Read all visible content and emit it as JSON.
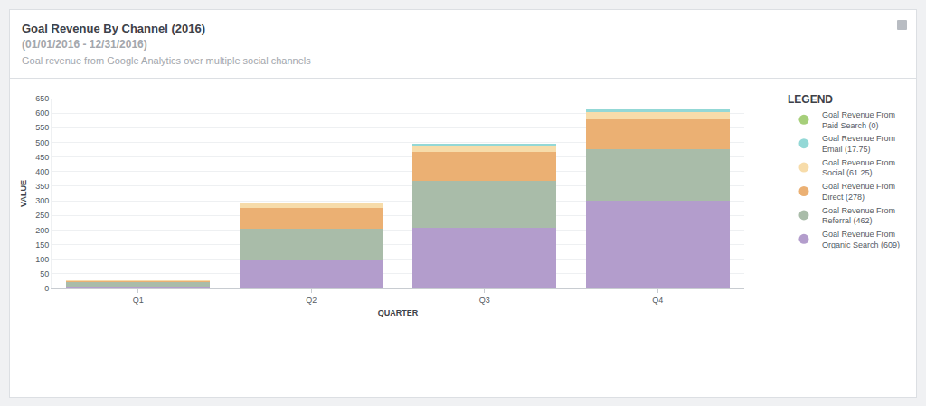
{
  "chart_data": {
    "type": "bar",
    "title": "Goal Revenue By Channel (2016)",
    "subtitle": "(01/01/2016 - 12/31/2016)",
    "description": "Goal revenue from Google Analytics over multiple social channels",
    "x_label": "QUARTER",
    "y_label": "VALUE",
    "legend_title": "LEGEND",
    "categories": [
      "Q1",
      "Q2",
      "Q3",
      "Q4"
    ],
    "series": [
      {
        "name": "Goal Revenue From Organic Search (609)",
        "color": "#b39dcc",
        "values": [
          7,
          95,
          207,
          300
        ]
      },
      {
        "name": "Goal Revenue From Referral (462)",
        "color": "#a9bca9",
        "values": [
          15,
          110,
          160,
          177
        ]
      },
      {
        "name": "Goal Revenue From Direct (278)",
        "color": "#ebb073",
        "values": [
          4,
          70,
          101,
          103
        ]
      },
      {
        "name": "Goal Revenue From Social (61.25)",
        "color": "#f7dcaa",
        "values": [
          1.25,
          15,
          20,
          25
        ]
      },
      {
        "name": "Goal Revenue From Email (17.75)",
        "color": "#93d8d6",
        "values": [
          0.75,
          4,
          6,
          7
        ]
      },
      {
        "name": "Goal Revenue From Paid Search (0)",
        "color": "#a6cf7a",
        "values": [
          0,
          0,
          0,
          0
        ]
      }
    ],
    "ylim": [
      0,
      650
    ],
    "yticks": [
      0,
      50,
      100,
      150,
      200,
      250,
      300,
      350,
      400,
      450,
      500,
      550,
      600,
      650
    ],
    "stacked": true,
    "grid": true,
    "legend": "right"
  }
}
